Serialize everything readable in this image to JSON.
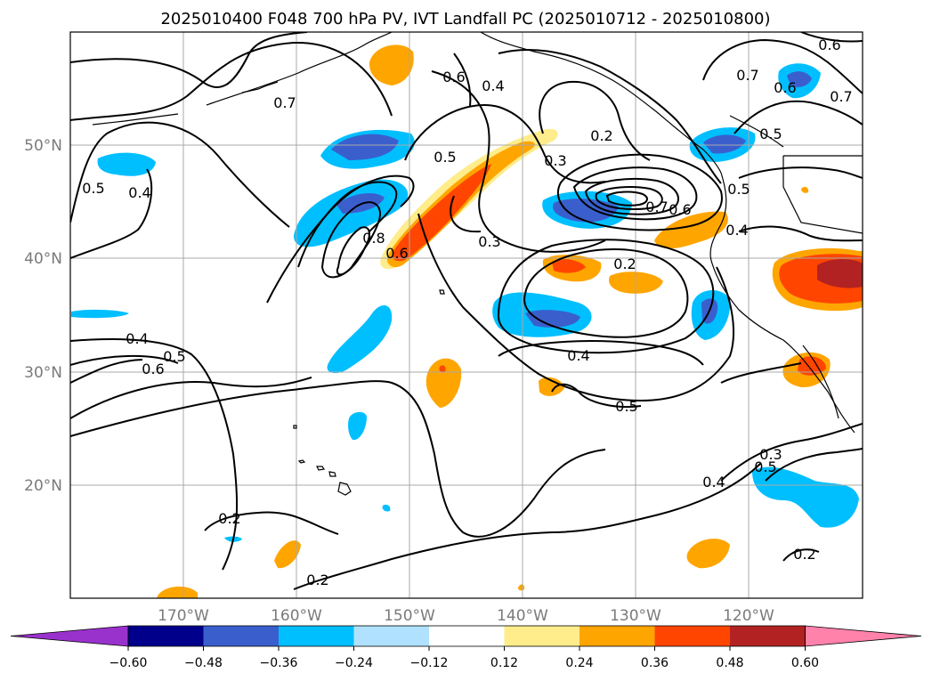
{
  "title": "2025010400 F048 700 hPa PV, IVT Landfall PC (2025010712 - 2025010800)",
  "lat_labels": [
    "50°N",
    "40°N",
    "30°N",
    "20°N"
  ],
  "lon_labels": [
    "170°W",
    "160°W",
    "150°W",
    "140°W",
    "130°W",
    "120°W"
  ],
  "colorbar": {
    "ticks": [
      "−0.60",
      "−0.48",
      "−0.36",
      "−0.24",
      "−0.12",
      "0.12",
      "0.24",
      "0.36",
      "0.48",
      "0.60"
    ],
    "colors": [
      "#9932cc",
      "#00008b",
      "#3a5fcd",
      "#00bfff",
      "#b0e2ff",
      "#ffffff",
      "#ffec8b",
      "#ffa500",
      "#ff4500",
      "#b22222",
      "#ff82ab"
    ]
  },
  "contour_labels": [
    "0.6",
    "0.7",
    "0.6",
    "0.4",
    "0.7",
    "0.6",
    "0.7",
    "0.2",
    "0.3",
    "0.5",
    "0.5",
    "0.5",
    "0.4",
    "0.8",
    "0.6",
    "0.3",
    "0.7",
    "0.6",
    "0.5",
    "0.4",
    "0.2",
    "0.4",
    "0.5",
    "0.6",
    "0.5",
    "0.4",
    "0.5",
    "0.4",
    "0.3",
    "0.2",
    "0.2",
    "0.2"
  ]
}
